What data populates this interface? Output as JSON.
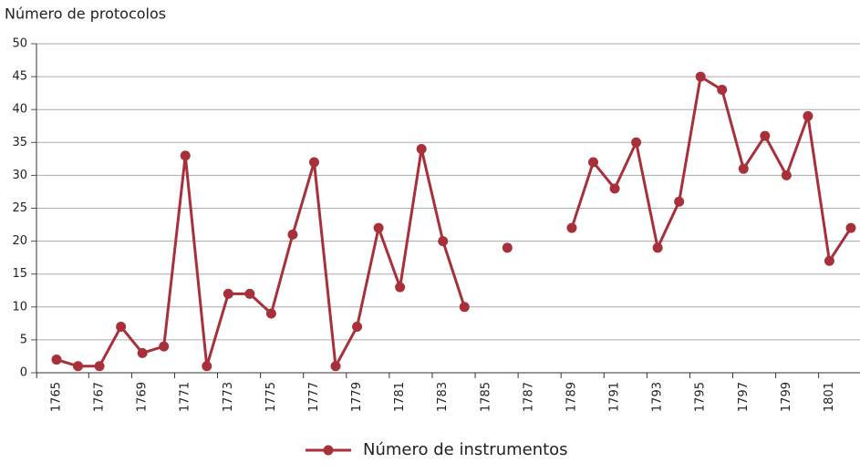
{
  "chart_data": {
    "type": "line",
    "y_axis_title": "Número de protocolos",
    "categories": [
      "1765",
      null,
      "1767",
      null,
      "1769",
      null,
      "1771",
      null,
      "1773",
      null,
      "1775",
      null,
      "1777",
      null,
      "1779",
      null,
      "1781",
      null,
      "1783",
      null,
      "1785",
      null,
      "1787",
      null,
      "1789",
      null,
      "1791",
      null,
      "1793",
      null,
      "1795",
      null,
      "1797",
      null,
      "1799",
      null,
      "1801",
      null
    ],
    "series": [
      {
        "name": "Número de instrumentos",
        "color": "#a8303a",
        "values": [
          2,
          1,
          1,
          7,
          3,
          4,
          33,
          1,
          12,
          12,
          9,
          21,
          32,
          1,
          7,
          22,
          13,
          34,
          20,
          10,
          null,
          19,
          null,
          null,
          22,
          32,
          28,
          35,
          19,
          26,
          45,
          43,
          31,
          36,
          30,
          39,
          17,
          22
        ]
      }
    ],
    "ylim": [
      0,
      50
    ],
    "yticks": [
      0,
      5,
      10,
      15,
      20,
      25,
      30,
      35,
      40,
      45,
      50
    ],
    "grid": true
  }
}
